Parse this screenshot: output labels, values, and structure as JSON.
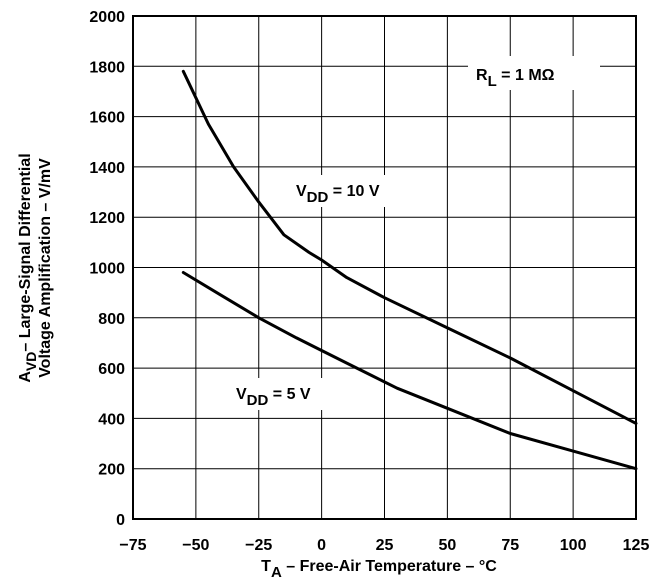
{
  "chart_data": {
    "type": "line",
    "xlabel": {
      "main": "T",
      "sub": "A",
      "rest": " – Free-Air Temperature – °C"
    },
    "ylabel": {
      "line1": {
        "main": "A",
        "sub": "VD",
        "rest": "– Large-Signal Differential"
      },
      "line2": "Voltage Amplification – V/mV"
    },
    "xlim": [
      -75,
      125
    ],
    "ylim": [
      0,
      2000
    ],
    "xticks": [
      -75,
      -50,
      -25,
      0,
      25,
      50,
      75,
      100,
      125
    ],
    "xtick_labels": [
      "−75",
      "−50",
      "−25",
      "0",
      "25",
      "50",
      "75",
      "100",
      "125"
    ],
    "yticks": [
      0,
      200,
      400,
      600,
      800,
      1000,
      1200,
      1400,
      1600,
      1800,
      2000
    ],
    "ytick_labels": [
      "0",
      "200",
      "400",
      "600",
      "800",
      "1000",
      "1200",
      "1400",
      "1600",
      "1800",
      "2000"
    ],
    "grid": true,
    "annotations": [
      {
        "main": "R",
        "sub": "L",
        "rest": " = 1 MΩ"
      },
      {
        "main": "V",
        "sub": "DD",
        "rest": " = 10 V"
      },
      {
        "main": "V",
        "sub": "DD",
        "rest": " = 5 V"
      }
    ],
    "series": [
      {
        "x": [
          -55,
          -45,
          -35,
          -25,
          -15,
          -5,
          0,
          10,
          25,
          50,
          75,
          100,
          125
        ],
        "values": [
          1780,
          1570,
          1400,
          1260,
          1130,
          1060,
          1030,
          960,
          880,
          760,
          640,
          510,
          380
        ]
      },
      {
        "x": [
          -55,
          -40,
          -25,
          -10,
          0,
          10,
          20,
          30,
          50,
          75,
          100,
          125
        ],
        "values": [
          980,
          890,
          800,
          720,
          670,
          620,
          570,
          520,
          440,
          340,
          270,
          200
        ]
      }
    ]
  }
}
